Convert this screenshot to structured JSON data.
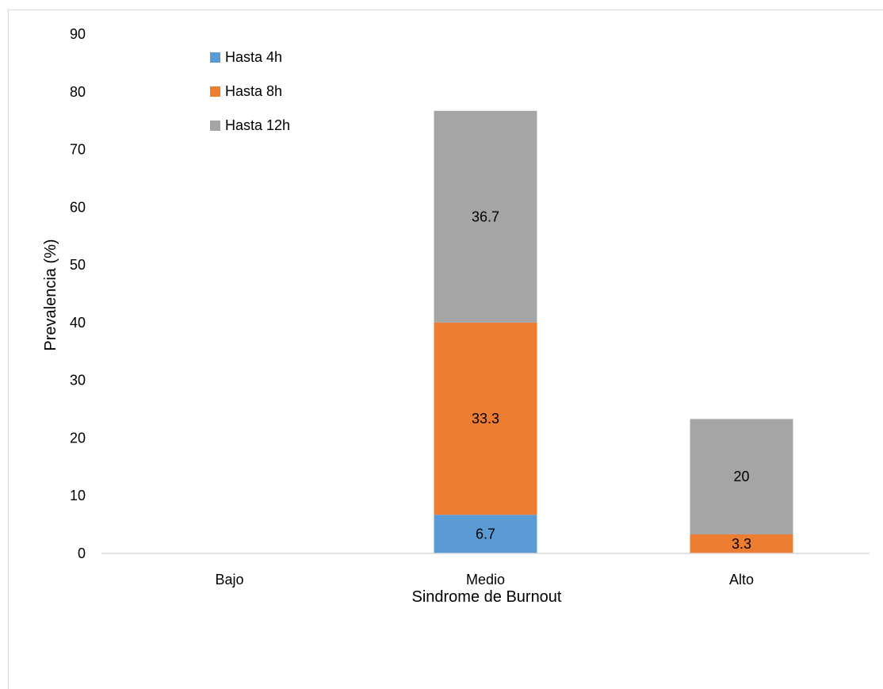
{
  "chart_data": {
    "type": "bar",
    "stacked": true,
    "title": "",
    "xlabel": "Sindrome de Burnout",
    "ylabel": "Prevalencia (%)",
    "categories": [
      "Bajo",
      "Medio",
      "Alto"
    ],
    "ylim": [
      0,
      90
    ],
    "yticks": [
      0,
      10,
      20,
      30,
      40,
      50,
      60,
      70,
      80,
      90
    ],
    "grid": false,
    "legend_position": "top-left",
    "series": [
      {
        "name": "Hasta 4h",
        "color": "#5B9BD5",
        "values": [
          0,
          6.7,
          0
        ],
        "labels": [
          "",
          "6.7",
          ""
        ]
      },
      {
        "name": "Hasta 8h",
        "color": "#ED7D31",
        "values": [
          0,
          33.3,
          3.3
        ],
        "labels": [
          "",
          "33.3",
          "3.3"
        ]
      },
      {
        "name": "Hasta 12h",
        "color": "#A5A5A5",
        "values": [
          0,
          36.7,
          20
        ],
        "labels": [
          "",
          "36.7",
          "20"
        ]
      }
    ]
  }
}
